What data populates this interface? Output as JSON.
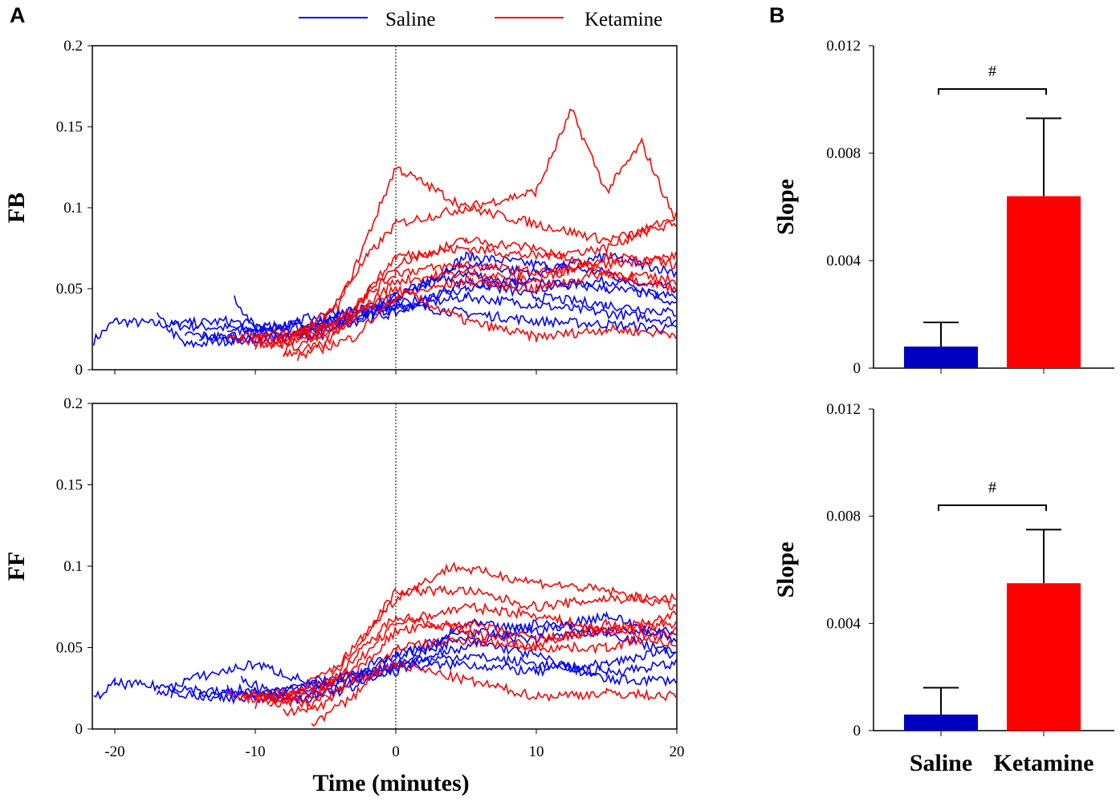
{
  "chart_data": [
    {
      "type": "line",
      "panel": "A",
      "ylabel": "FB",
      "xlabel": "",
      "xlim": [
        -21.6,
        20
      ],
      "ylim": [
        0,
        0.2
      ],
      "xticks": [
        "-20",
        "-10",
        "0",
        "10",
        "20"
      ],
      "yticks": [
        "0",
        "0.05",
        "0.1",
        "0.15",
        "0.2"
      ],
      "vline_x": 0,
      "series": [
        {
          "name": "Saline",
          "color": "#0000ff",
          "traces": [
            [
              [
                -21.5,
                0.018
              ],
              [
                -20,
                0.03
              ],
              [
                -15,
                0.027
              ],
              [
                -10,
                0.025
              ],
              [
                -5,
                0.03
              ],
              [
                0,
                0.045
              ],
              [
                5,
                0.06
              ],
              [
                10,
                0.05
              ],
              [
                15,
                0.055
              ],
              [
                20,
                0.05
              ]
            ],
            [
              [
                -17,
                0.033
              ],
              [
                -15,
                0.015
              ],
              [
                -10,
                0.02
              ],
              [
                -5,
                0.025
              ],
              [
                0,
                0.042
              ],
              [
                5,
                0.07
              ],
              [
                10,
                0.065
              ],
              [
                15,
                0.06
              ],
              [
                20,
                0.04
              ]
            ],
            [
              [
                -16,
                0.028
              ],
              [
                -12,
                0.03
              ],
              [
                -8,
                0.025
              ],
              [
                -4,
                0.03
              ],
              [
                0,
                0.038
              ],
              [
                5,
                0.045
              ],
              [
                10,
                0.04
              ],
              [
                15,
                0.035
              ],
              [
                20,
                0.03
              ]
            ],
            [
              [
                -11.5,
                0.045
              ],
              [
                -10,
                0.025
              ],
              [
                -5,
                0.03
              ],
              [
                0,
                0.04
              ],
              [
                5,
                0.035
              ],
              [
                10,
                0.03
              ],
              [
                15,
                0.028
              ],
              [
                20,
                0.025
              ]
            ],
            [
              [
                -15,
                0.022
              ],
              [
                -10,
                0.018
              ],
              [
                -5,
                0.022
              ],
              [
                0,
                0.045
              ],
              [
                5,
                0.065
              ],
              [
                10,
                0.06
              ],
              [
                15,
                0.07
              ],
              [
                20,
                0.06
              ]
            ],
            [
              [
                -12,
                0.025
              ],
              [
                -8,
                0.02
              ],
              [
                -4,
                0.028
              ],
              [
                0,
                0.035
              ],
              [
                5,
                0.055
              ],
              [
                10,
                0.045
              ],
              [
                15,
                0.04
              ],
              [
                20,
                0.035
              ]
            ],
            [
              [
                -14,
                0.02
              ],
              [
                -10,
                0.022
              ],
              [
                -5,
                0.035
              ],
              [
                0,
                0.04
              ],
              [
                5,
                0.05
              ],
              [
                10,
                0.055
              ],
              [
                15,
                0.05
              ],
              [
                20,
                0.045
              ]
            ]
          ]
        },
        {
          "name": "Ketamine",
          "color": "#ff0000",
          "traces": [
            [
              [
                -12,
                0.02
              ],
              [
                -8,
                0.015
              ],
              [
                -4,
                0.04
              ],
              [
                0,
                0.125
              ],
              [
                5,
                0.1
              ],
              [
                10,
                0.11
              ],
              [
                12.5,
                0.16
              ],
              [
                15,
                0.11
              ],
              [
                17.5,
                0.14
              ],
              [
                20,
                0.09
              ]
            ],
            [
              [
                -10,
                0.02
              ],
              [
                -6,
                0.02
              ],
              [
                -2,
                0.07
              ],
              [
                0,
                0.09
              ],
              [
                5,
                0.1
              ],
              [
                10,
                0.09
              ],
              [
                15,
                0.08
              ],
              [
                20,
                0.09
              ]
            ],
            [
              [
                -8,
                0.01
              ],
              [
                -5,
                0.015
              ],
              [
                0,
                0.07
              ],
              [
                5,
                0.075
              ],
              [
                10,
                0.07
              ],
              [
                15,
                0.075
              ],
              [
                20,
                0.095
              ]
            ],
            [
              [
                -9,
                0.015
              ],
              [
                -5,
                0.02
              ],
              [
                0,
                0.05
              ],
              [
                5,
                0.03
              ],
              [
                10,
                0.02
              ],
              [
                15,
                0.025
              ],
              [
                20,
                0.022
              ]
            ],
            [
              [
                -11,
                0.02
              ],
              [
                -5,
                0.025
              ],
              [
                0,
                0.06
              ],
              [
                5,
                0.065
              ],
              [
                10,
                0.06
              ],
              [
                15,
                0.065
              ],
              [
                20,
                0.07
              ]
            ],
            [
              [
                -7,
                0.008
              ],
              [
                -3,
                0.02
              ],
              [
                0,
                0.045
              ],
              [
                5,
                0.055
              ],
              [
                10,
                0.05
              ],
              [
                15,
                0.06
              ],
              [
                20,
                0.055
              ]
            ],
            [
              [
                -10,
                0.015
              ],
              [
                -4,
                0.03
              ],
              [
                0,
                0.065
              ],
              [
                5,
                0.08
              ],
              [
                10,
                0.075
              ],
              [
                15,
                0.06
              ],
              [
                20,
                0.05
              ]
            ],
            [
              [
                -8,
                0.012
              ],
              [
                -4,
                0.025
              ],
              [
                0,
                0.055
              ],
              [
                5,
                0.06
              ],
              [
                10,
                0.055
              ],
              [
                15,
                0.07
              ],
              [
                20,
                0.065
              ]
            ]
          ]
        }
      ]
    },
    {
      "type": "line",
      "panel": "A",
      "ylabel": "FF",
      "xlabel": "Time (minutes)",
      "xlim": [
        -21.6,
        20
      ],
      "ylim": [
        0,
        0.2
      ],
      "xticks": [
        "-20",
        "-10",
        "0",
        "10",
        "20"
      ],
      "yticks": [
        "0",
        "0.05",
        "0.1",
        "0.15",
        "0.2"
      ],
      "vline_x": 0,
      "series": [
        {
          "name": "Saline",
          "color": "#0000ff",
          "traces": [
            [
              [
                -21.5,
                0.018
              ],
              [
                -20,
                0.028
              ],
              [
                -15,
                0.025
              ],
              [
                -10,
                0.02
              ],
              [
                -5,
                0.028
              ],
              [
                0,
                0.045
              ],
              [
                5,
                0.06
              ],
              [
                10,
                0.055
              ],
              [
                15,
                0.06
              ],
              [
                20,
                0.045
              ]
            ],
            [
              [
                -17,
                0.02
              ],
              [
                -15,
                0.03
              ],
              [
                -10,
                0.04
              ],
              [
                -5,
                0.025
              ],
              [
                0,
                0.04
              ],
              [
                5,
                0.045
              ],
              [
                10,
                0.04
              ],
              [
                15,
                0.035
              ],
              [
                20,
                0.04
              ]
            ],
            [
              [
                -16,
                0.022
              ],
              [
                -12,
                0.018
              ],
              [
                -8,
                0.02
              ],
              [
                -4,
                0.03
              ],
              [
                0,
                0.035
              ],
              [
                5,
                0.065
              ],
              [
                10,
                0.06
              ],
              [
                15,
                0.07
              ],
              [
                20,
                0.055
              ]
            ],
            [
              [
                -12,
                0.025
              ],
              [
                -8,
                0.02
              ],
              [
                -4,
                0.025
              ],
              [
                0,
                0.045
              ],
              [
                5,
                0.055
              ],
              [
                10,
                0.045
              ],
              [
                15,
                0.03
              ],
              [
                20,
                0.03
              ]
            ],
            [
              [
                -14,
                0.02
              ],
              [
                -10,
                0.022
              ],
              [
                -5,
                0.03
              ],
              [
                0,
                0.038
              ],
              [
                5,
                0.04
              ],
              [
                10,
                0.035
              ],
              [
                15,
                0.04
              ],
              [
                20,
                0.05
              ]
            ],
            [
              [
                -11,
                0.03
              ],
              [
                -7,
                0.018
              ],
              [
                -3,
                0.025
              ],
              [
                0,
                0.04
              ],
              [
                5,
                0.05
              ],
              [
                10,
                0.065
              ],
              [
                15,
                0.06
              ],
              [
                20,
                0.06
              ]
            ]
          ]
        },
        {
          "name": "Ketamine",
          "color": "#ff0000",
          "traces": [
            [
              [
                -12,
                0.02
              ],
              [
                -8,
                0.018
              ],
              [
                -4,
                0.04
              ],
              [
                0,
                0.08
              ],
              [
                4,
                0.1
              ],
              [
                10,
                0.09
              ],
              [
                15,
                0.085
              ],
              [
                20,
                0.075
              ]
            ],
            [
              [
                -10,
                0.02
              ],
              [
                -6,
                0.015
              ],
              [
                -2,
                0.06
              ],
              [
                0,
                0.085
              ],
              [
                5,
                0.085
              ],
              [
                10,
                0.075
              ],
              [
                15,
                0.08
              ],
              [
                20,
                0.08
              ]
            ],
            [
              [
                -8,
                0.01
              ],
              [
                -5,
                0.015
              ],
              [
                0,
                0.06
              ],
              [
                5,
                0.065
              ],
              [
                10,
                0.055
              ],
              [
                15,
                0.06
              ],
              [
                20,
                0.07
              ]
            ],
            [
              [
                -9,
                0.015
              ],
              [
                -5,
                0.02
              ],
              [
                0,
                0.04
              ],
              [
                5,
                0.03
              ],
              [
                10,
                0.02
              ],
              [
                15,
                0.022
              ],
              [
                20,
                0.02
              ]
            ],
            [
              [
                -11,
                0.02
              ],
              [
                -5,
                0.025
              ],
              [
                0,
                0.07
              ],
              [
                5,
                0.06
              ],
              [
                10,
                0.05
              ],
              [
                15,
                0.05
              ],
              [
                20,
                0.06
              ]
            ],
            [
              [
                -6,
                0.003
              ],
              [
                -3,
                0.02
              ],
              [
                0,
                0.05
              ],
              [
                5,
                0.055
              ],
              [
                10,
                0.05
              ],
              [
                15,
                0.065
              ],
              [
                20,
                0.05
              ]
            ],
            [
              [
                -10,
                0.015
              ],
              [
                -4,
                0.03
              ],
              [
                0,
                0.065
              ],
              [
                5,
                0.075
              ],
              [
                10,
                0.07
              ],
              [
                15,
                0.06
              ],
              [
                20,
                0.065
              ]
            ]
          ]
        }
      ]
    },
    {
      "type": "bar",
      "panel": "B",
      "ylabel": "Slope",
      "ylim": [
        0,
        0.012
      ],
      "yticks": [
        "0",
        "0.004",
        "0.008",
        "0.012"
      ],
      "categories": [
        "Saline",
        "Ketamine"
      ],
      "values": [
        0.0008,
        0.0064
      ],
      "errors": [
        0.0009,
        0.0029
      ],
      "colors": [
        "#0000c0",
        "#ff0000"
      ],
      "significance": "#"
    },
    {
      "type": "bar",
      "panel": "B",
      "ylabel": "Slope",
      "ylim": [
        0,
        0.012
      ],
      "yticks": [
        "0",
        "0.004",
        "0.008",
        "0.012"
      ],
      "categories": [
        "Saline",
        "Ketamine"
      ],
      "values": [
        0.0006,
        0.0055
      ],
      "errors": [
        0.001,
        0.002
      ],
      "colors": [
        "#0000c0",
        "#ff0000"
      ],
      "significance": "#"
    }
  ],
  "panel_labels": [
    "A",
    "B"
  ],
  "legend": [
    "Saline",
    "Ketamine"
  ]
}
